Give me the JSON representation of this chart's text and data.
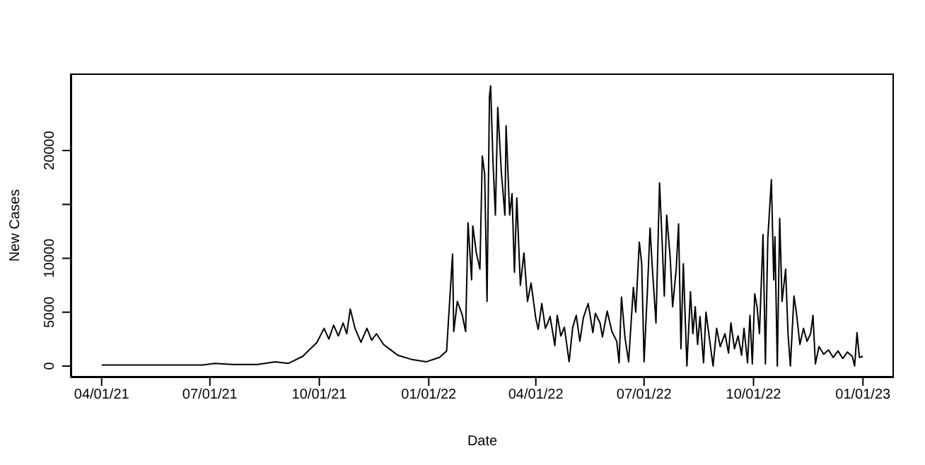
{
  "chart_data": {
    "type": "line",
    "xlabel": "Date",
    "ylabel": "New Cases",
    "color": "#000000",
    "marker": "none",
    "line_style": "solid",
    "xlim": [
      "2021-03-06",
      "2023-01-27"
    ],
    "ylim": [
      -1050,
      27150
    ],
    "xticks": [
      {
        "value": "2021-04-01",
        "label": "04/01/21"
      },
      {
        "value": "2021-07-01",
        "label": "07/01/21"
      },
      {
        "value": "2021-10-01",
        "label": "10/01/21"
      },
      {
        "value": "2022-01-01",
        "label": "01/01/22"
      },
      {
        "value": "2022-04-01",
        "label": "04/01/22"
      },
      {
        "value": "2022-07-01",
        "label": "07/01/22"
      },
      {
        "value": "2022-10-01",
        "label": "10/01/22"
      },
      {
        "value": "2023-01-01",
        "label": "01/01/23"
      }
    ],
    "yticks": [
      0,
      5000,
      10000,
      {
        "value": 15000,
        "label": null
      },
      20000
    ],
    "x": [
      "2021-04-01",
      "2021-05-15",
      "2021-06-25",
      "2021-07-05",
      "2021-07-20",
      "2021-08-10",
      "2021-08-25",
      "2021-09-05",
      "2021-09-17",
      "2021-09-29",
      "2021-10-05",
      "2021-10-09",
      "2021-10-13",
      "2021-10-17",
      "2021-10-21",
      "2021-10-24",
      "2021-10-27",
      "2021-10-31",
      "2021-11-05",
      "2021-11-10",
      "2021-11-14",
      "2021-11-18",
      "2021-11-24",
      "2021-11-30",
      "2021-12-06",
      "2021-12-18",
      "2021-12-30",
      "2022-01-10",
      "2022-01-16",
      "2022-01-21",
      "2022-01-22",
      "2022-01-25",
      "2022-01-29",
      "2022-02-01",
      "2022-02-03",
      "2022-02-06",
      "2022-02-07",
      "2022-02-10",
      "2022-02-13",
      "2022-02-15",
      "2022-02-17",
      "2022-02-19",
      "2022-02-21",
      "2022-02-22",
      "2022-02-24",
      "2022-02-26",
      "2022-02-28",
      "2022-03-03",
      "2022-03-06",
      "2022-03-07",
      "2022-03-10",
      "2022-03-12",
      "2022-03-14",
      "2022-03-16",
      "2022-03-19",
      "2022-03-22",
      "2022-03-25",
      "2022-03-28",
      "2022-04-01",
      "2022-04-03",
      "2022-04-06",
      "2022-04-09",
      "2022-04-11",
      "2022-04-13",
      "2022-04-17",
      "2022-04-19",
      "2022-04-22",
      "2022-04-25",
      "2022-04-29",
      "2022-05-02",
      "2022-05-05",
      "2022-05-08",
      "2022-05-11",
      "2022-05-15",
      "2022-05-19",
      "2022-05-21",
      "2022-05-25",
      "2022-05-27",
      "2022-05-31",
      "2022-06-04",
      "2022-06-08",
      "2022-06-10",
      "2022-06-12",
      "2022-06-15",
      "2022-06-18",
      "2022-06-22",
      "2022-06-24",
      "2022-06-27",
      "2022-06-29",
      "2022-07-01",
      "2022-07-04",
      "2022-07-06",
      "2022-07-08",
      "2022-07-11",
      "2022-07-14",
      "2022-07-16",
      "2022-07-18",
      "2022-07-20",
      "2022-07-23",
      "2022-07-25",
      "2022-07-28",
      "2022-07-30",
      "2022-08-01",
      "2022-08-03",
      "2022-08-06",
      "2022-08-09",
      "2022-08-11",
      "2022-08-13",
      "2022-08-15",
      "2022-08-17",
      "2022-08-20",
      "2022-08-22",
      "2022-08-25",
      "2022-08-28",
      "2022-08-31",
      "2022-09-03",
      "2022-09-07",
      "2022-09-10",
      "2022-09-12",
      "2022-09-15",
      "2022-09-18",
      "2022-09-21",
      "2022-09-23",
      "2022-09-26",
      "2022-09-28",
      "2022-09-30",
      "2022-10-02",
      "2022-10-04",
      "2022-10-06",
      "2022-10-09",
      "2022-10-11",
      "2022-10-13",
      "2022-10-16",
      "2022-10-18",
      "2022-10-19",
      "2022-10-21",
      "2022-10-23",
      "2022-10-25",
      "2022-10-28",
      "2022-10-30",
      "2022-11-01",
      "2022-11-04",
      "2022-11-06",
      "2022-11-09",
      "2022-11-12",
      "2022-11-15",
      "2022-11-18",
      "2022-11-20",
      "2022-11-22",
      "2022-11-25",
      "2022-11-29",
      "2022-12-03",
      "2022-12-07",
      "2022-12-11",
      "2022-12-15",
      "2022-12-19",
      "2022-12-23",
      "2022-12-25",
      "2022-12-27",
      "2022-12-29",
      "2023-01-01"
    ],
    "values": [
      100,
      100,
      100,
      250,
      150,
      150,
      400,
      250,
      900,
      2200,
      3500,
      2500,
      3800,
      2800,
      4000,
      3000,
      5300,
      3500,
      2200,
      3500,
      2400,
      3000,
      2000,
      1500,
      1000,
      600,
      400,
      800,
      1400,
      10400,
      3200,
      6000,
      4800,
      3200,
      13300,
      8000,
      13000,
      10500,
      9000,
      19500,
      17800,
      6000,
      25000,
      26000,
      18900,
      14000,
      24000,
      18000,
      14000,
      22300,
      14000,
      16000,
      8700,
      15600,
      7500,
      10500,
      6000,
      7700,
      4400,
      3400,
      5800,
      3500,
      4000,
      4600,
      1900,
      4700,
      2800,
      3600,
      400,
      3600,
      4700,
      2300,
      4500,
      5800,
      3100,
      4900,
      4000,
      2700,
      5100,
      3200,
      2300,
      300,
      6400,
      2600,
      400,
      7300,
      5000,
      11500,
      9500,
      400,
      7500,
      12800,
      9000,
      4000,
      17000,
      12000,
      6500,
      14000,
      10000,
      5500,
      9000,
      13200,
      1600,
      9500,
      0,
      6900,
      3000,
      5500,
      2000,
      4600,
      300,
      5000,
      2500,
      0,
      3500,
      1800,
      3000,
      1200,
      4000,
      1600,
      2800,
      1000,
      3500,
      300,
      4700,
      200,
      6700,
      5500,
      3000,
      12200,
      200,
      11800,
      17300,
      8000,
      12000,
      0,
      13700,
      6000,
      9000,
      3000,
      0,
      6500,
      5000,
      2000,
      3500,
      2300,
      3000,
      4700,
      200,
      1800,
      1100,
      1500,
      800,
      1400,
      700,
      1300,
      900,
      0,
      3100,
      800,
      900
    ]
  }
}
